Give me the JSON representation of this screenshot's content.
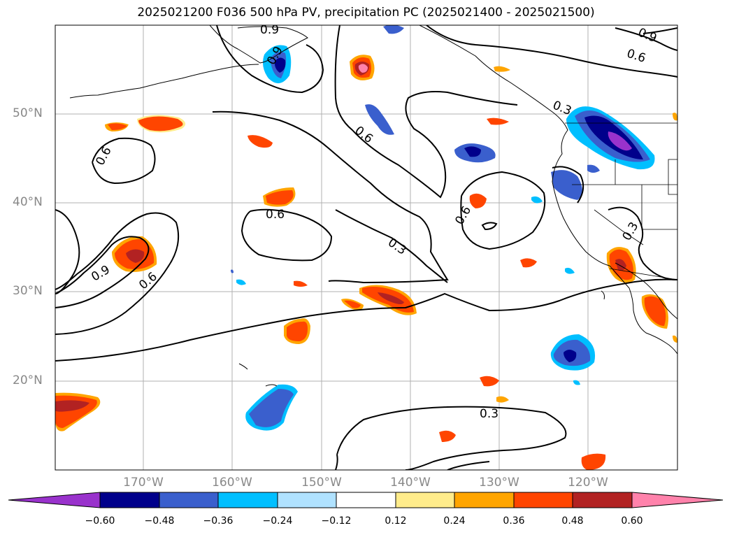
{
  "title": "2025021200 F036 500 hPa PV, precipitation PC (2025021400 - 2025021500)",
  "lat_labels": [
    "50°N",
    "40°N",
    "30°N",
    "20°N"
  ],
  "lon_labels": [
    "170°W",
    "160°W",
    "150°W",
    "140°W",
    "130°W",
    "120°W"
  ],
  "colorbar": {
    "ticks": [
      "−0.60",
      "−0.48",
      "−0.36",
      "−0.24",
      "−0.12",
      "0.12",
      "0.24",
      "0.36",
      "0.48",
      "0.60"
    ],
    "colors": [
      "#9932cc",
      "#00008b",
      "#3a5fcd",
      "#00bfff",
      "#b0e2ff",
      "#ffffff",
      "#ffec8b",
      "#ffa500",
      "#ff4500",
      "#b22222",
      "#ff82ab"
    ]
  },
  "contour_labels": [
    "0.9",
    "0.9",
    "0.6",
    "0.6",
    "0.6",
    "0.6",
    "0.9",
    "0.6",
    "0.3",
    "0.3",
    "0.3",
    "0.6",
    "0.3",
    "0.9",
    "0.9",
    "0.6",
    "0.3"
  ]
}
